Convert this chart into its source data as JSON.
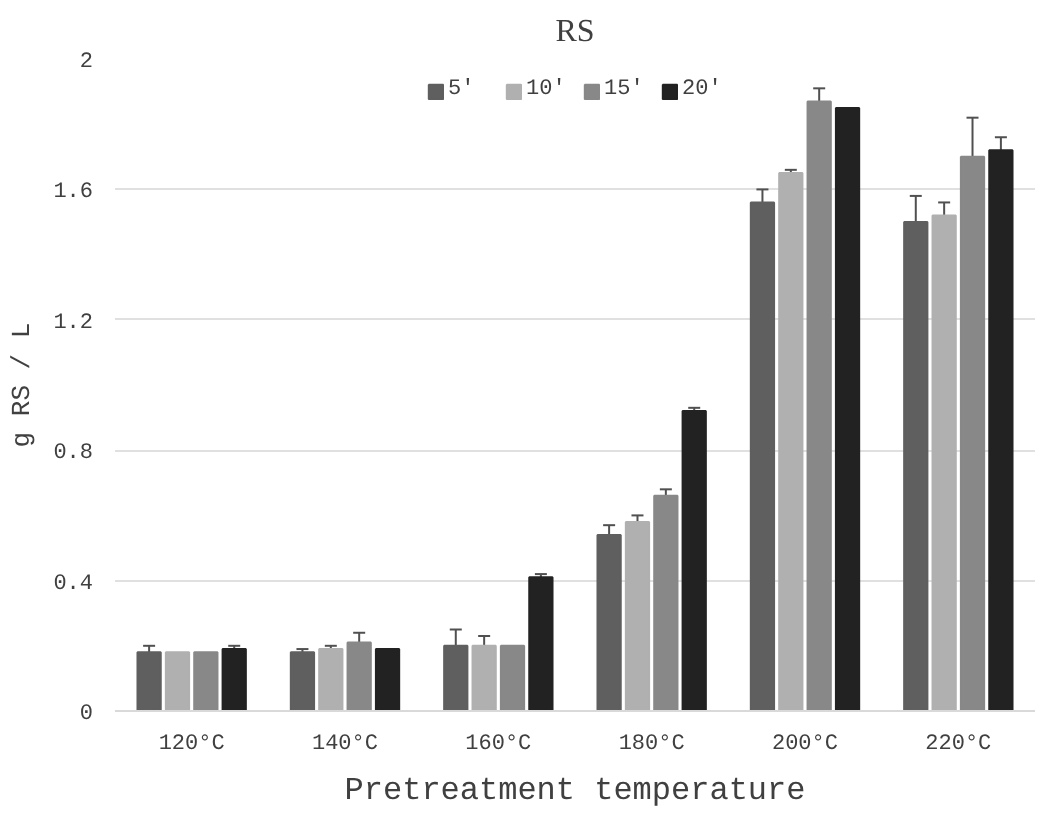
{
  "chart_data": {
    "type": "bar",
    "title": "RS",
    "xlabel": "Pretreatment temperature",
    "ylabel": "g RS / L",
    "categories": [
      "120°C",
      "140°C",
      "160°C",
      "180°C",
      "200°C",
      "220°C"
    ],
    "series": [
      {
        "name": "5'",
        "color": "#5f5f5f",
        "values": [
          0.18,
          0.18,
          0.2,
          0.54,
          1.56,
          1.5
        ],
        "errors": [
          0.02,
          0.01,
          0.05,
          0.03,
          0.04,
          0.08
        ]
      },
      {
        "name": "10'",
        "color": "#b0b0b0",
        "values": [
          0.18,
          0.19,
          0.2,
          0.58,
          1.65,
          1.52
        ],
        "errors": [
          null,
          0.01,
          0.03,
          0.02,
          0.01,
          0.04
        ]
      },
      {
        "name": "15'",
        "color": "#888888",
        "values": [
          0.18,
          0.21,
          0.2,
          0.66,
          1.87,
          1.7
        ],
        "errors": [
          null,
          0.03,
          null,
          0.02,
          0.04,
          0.12
        ]
      },
      {
        "name": "20'",
        "color": "#222222",
        "values": [
          0.19,
          0.19,
          0.41,
          0.92,
          1.85,
          1.72
        ],
        "errors": [
          0.01,
          null,
          0.01,
          0.01,
          null,
          0.04
        ]
      }
    ],
    "ylim": [
      0,
      2
    ],
    "yticks": [
      0,
      0.4,
      0.8,
      1.2,
      1.6,
      2
    ],
    "grid": "y",
    "legend": "top"
  }
}
